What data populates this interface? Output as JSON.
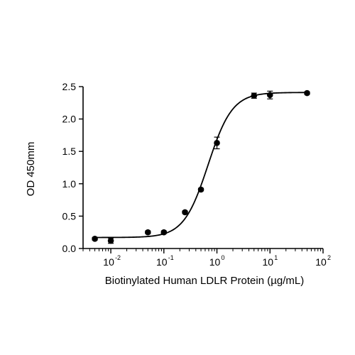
{
  "chart_data": {
    "type": "scatter",
    "xscale": "log",
    "xlabel": "Biotinylated Human LDLR Protein (µg/mL)",
    "ylabel": "OD 450mm",
    "xlim": [
      0.003,
      100
    ],
    "ylim": [
      0,
      2.5
    ],
    "x_ticks": [
      {
        "value": 0.01,
        "base": "10",
        "exp": "-2"
      },
      {
        "value": 0.1,
        "base": "10",
        "exp": "-1"
      },
      {
        "value": 1,
        "base": "10",
        "exp": "0"
      },
      {
        "value": 10,
        "base": "10",
        "exp": "1"
      },
      {
        "value": 100,
        "base": "10",
        "exp": "2"
      }
    ],
    "y_ticks": [
      "0.0",
      "0.5",
      "1.0",
      "1.5",
      "2.0",
      "2.5"
    ],
    "series": [
      {
        "points": [
          {
            "x": 0.005,
            "y": 0.15,
            "err": 0.02
          },
          {
            "x": 0.01,
            "y": 0.12,
            "err": 0.04
          },
          {
            "x": 0.05,
            "y": 0.25,
            "err": 0.02
          },
          {
            "x": 0.1,
            "y": 0.25,
            "err": 0.02
          },
          {
            "x": 0.25,
            "y": 0.56,
            "err": 0.02
          },
          {
            "x": 0.5,
            "y": 0.91,
            "err": 0.02
          },
          {
            "x": 1,
            "y": 1.63,
            "err": 0.09
          },
          {
            "x": 5,
            "y": 2.36,
            "err": 0.04
          },
          {
            "x": 10,
            "y": 2.37,
            "err": 0.06
          },
          {
            "x": 50,
            "y": 2.4,
            "err": 0.02
          }
        ],
        "fit": {
          "model": "4PL",
          "bottom": 0.17,
          "top": 2.41,
          "ec50": 0.68,
          "hill": 1.9,
          "xrange": [
            0.005,
            50
          ]
        }
      }
    ],
    "grid": false,
    "legend": "none"
  }
}
